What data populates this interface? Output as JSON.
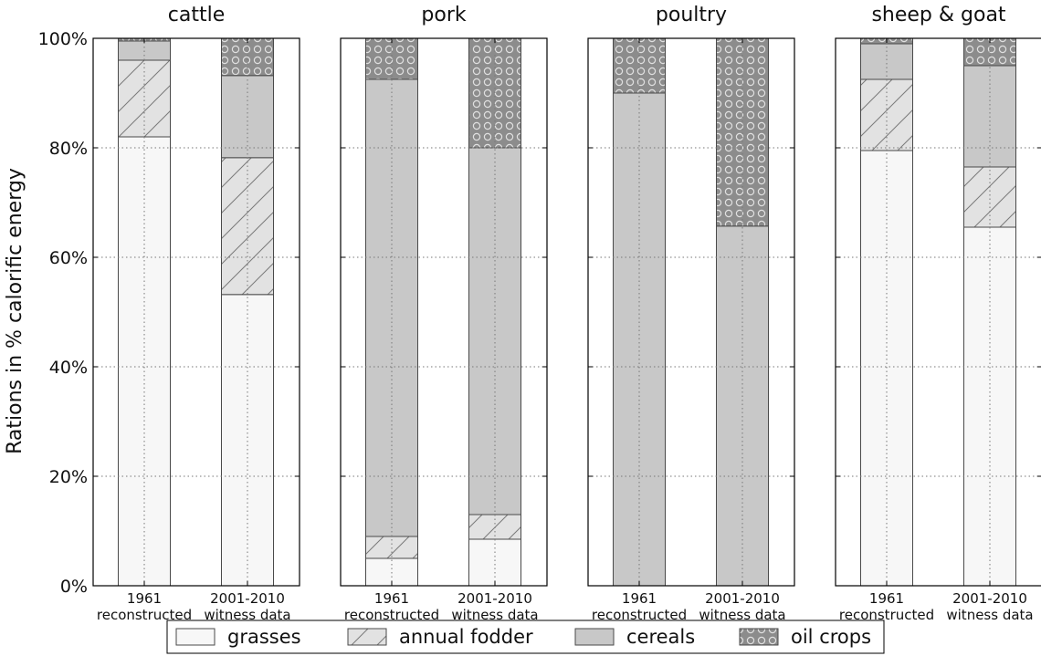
{
  "chart_data": {
    "type": "bar",
    "stacked": true,
    "ylabel": "Rations in % calorific energy",
    "ylim": [
      0,
      100
    ],
    "yticks": [
      "0%",
      "20%",
      "40%",
      "60%",
      "80%",
      "100%"
    ],
    "grid": true,
    "categories": [
      {
        "line1": "1961",
        "line2": "reconstructed"
      },
      {
        "line1": "2001-2010",
        "line2": "witness data"
      }
    ],
    "legend": {
      "placement": "bottom-center",
      "items": [
        {
          "label": "grasses",
          "color": "#f7f7f7",
          "pattern": "none"
        },
        {
          "label": "annual fodder",
          "color": "#e2e2e2",
          "pattern": "diagonal"
        },
        {
          "label": "cereals",
          "color": "#c8c8c8",
          "pattern": "none"
        },
        {
          "label": "oil crops",
          "color": "#8c8c8c",
          "pattern": "circles"
        }
      ]
    },
    "panels": [
      {
        "title": "cattle",
        "series": [
          {
            "name": "grasses",
            "values": [
              82,
              53.2
            ]
          },
          {
            "name": "annual fodder",
            "values": [
              14,
              25
            ]
          },
          {
            "name": "cereals",
            "values": [
              3.5,
              15
            ]
          },
          {
            "name": "oil crops",
            "values": [
              0.5,
              6.8
            ]
          }
        ]
      },
      {
        "title": "pork",
        "series": [
          {
            "name": "grasses",
            "values": [
              5,
              8.5
            ]
          },
          {
            "name": "annual fodder",
            "values": [
              4,
              4.5
            ]
          },
          {
            "name": "cereals",
            "values": [
              83.5,
              67
            ]
          },
          {
            "name": "oil crops",
            "values": [
              7.5,
              20
            ]
          }
        ]
      },
      {
        "title": "poultry",
        "series": [
          {
            "name": "grasses",
            "values": [
              0,
              0
            ]
          },
          {
            "name": "annual fodder",
            "values": [
              0,
              0
            ]
          },
          {
            "name": "cereals",
            "values": [
              90,
              65.7
            ]
          },
          {
            "name": "oil crops",
            "values": [
              10,
              34.3
            ]
          }
        ]
      },
      {
        "title": "sheep & goat",
        "series": [
          {
            "name": "grasses",
            "values": [
              79.5,
              65.5
            ]
          },
          {
            "name": "annual fodder",
            "values": [
              13,
              11
            ]
          },
          {
            "name": "cereals",
            "values": [
              6.5,
              18.5
            ]
          },
          {
            "name": "oil crops",
            "values": [
              1,
              5
            ]
          }
        ]
      }
    ]
  }
}
